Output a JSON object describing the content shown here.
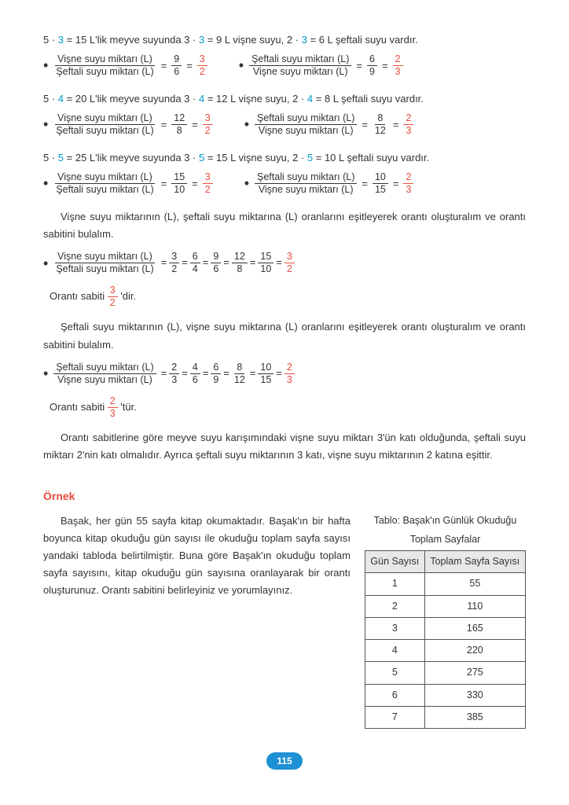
{
  "rows": [
    {
      "mult": "3",
      "total": "15",
      "vis": "9",
      "sef": "6",
      "left_num": "9",
      "left_den": "6",
      "left_r_n": "3",
      "left_r_d": "2",
      "right_num": "6",
      "right_den": "9",
      "right_r_n": "2",
      "right_r_d": "3"
    },
    {
      "mult": "4",
      "total": "20",
      "vis": "12",
      "sef": "8",
      "left_num": "12",
      "left_den": "8",
      "left_r_n": "3",
      "left_r_d": "2",
      "right_num": "8",
      "right_den": "12",
      "right_r_n": "2",
      "right_r_d": "3"
    },
    {
      "mult": "5",
      "total": "25",
      "vis": "15",
      "sef": "10",
      "left_num": "15",
      "left_den": "10",
      "left_r_n": "3",
      "left_r_d": "2",
      "right_num": "10",
      "right_den": "15",
      "right_r_n": "2",
      "right_r_d": "3"
    }
  ],
  "labels": {
    "visne": "Vişne suyu miktarı (L)",
    "seftali": "Şeftali suyu miktarı (L)"
  },
  "para1": "Vişne suyu miktarının (L), şeftali suyu miktarına (L) oranlarını eşitleyerek orantı oluşturalım ve orantı sabitini bulalım.",
  "chain1": [
    "3/2",
    "6/4",
    "9/6",
    "12/8",
    "15/10"
  ],
  "chain1_final_n": "3",
  "chain1_final_d": "2",
  "sabit1_pre": "Orantı sabiti ",
  "sabit1_n": "3",
  "sabit1_d": "2",
  "sabit1_post": "'dir.",
  "para2": "Şeftali suyu miktarının (L), vişne suyu miktarına (L) oranlarını eşitleyerek orantı oluşturalım ve orantı sabitini bulalım.",
  "chain2": [
    "2/3",
    "4/6",
    "6/9",
    "8/12",
    "10/15"
  ],
  "chain2_final_n": "2",
  "chain2_final_d": "3",
  "sabit2_pre": "Orantı sabiti ",
  "sabit2_n": "2",
  "sabit2_d": "3",
  "sabit2_post": "'tür.",
  "para3": "Orantı sabitlerine göre meyve suyu karışımındaki vişne suyu miktarı 3'ün katı olduğunda, şeftali suyu miktarı 2'nin katı olmalıdır. Ayrıca şeftali suyu miktarının 3 katı, vişne suyu miktarının 2 katına eşittir.",
  "example_hdr": "Örnek",
  "example_text": "Başak, her gün 55 sayfa kitap okumaktadır. Başak'ın bir hafta boyunca kitap okuduğu gün sayısı ile okuduğu toplam sayfa sayısı yandaki tabloda belirtilmiştir. Buna göre Başak'ın okuduğu toplam sayfa sayısını, kitap okuduğu gün sayısına oranlayarak bir orantı oluşturunuz. Orantı sabitini belirleyiniz ve yorumlayınız.",
  "table_title1": "Tablo: Başak'ın Günlük Okuduğu",
  "table_title2": "Toplam Sayfalar",
  "table_h1": "Gün Sayısı",
  "table_h2": "Toplam Sayfa Sayısı",
  "table_rows": [
    [
      "1",
      "55"
    ],
    [
      "2",
      "110"
    ],
    [
      "3",
      "165"
    ],
    [
      "4",
      "220"
    ],
    [
      "5",
      "275"
    ],
    [
      "6",
      "330"
    ],
    [
      "7",
      "385"
    ]
  ],
  "page": "115"
}
